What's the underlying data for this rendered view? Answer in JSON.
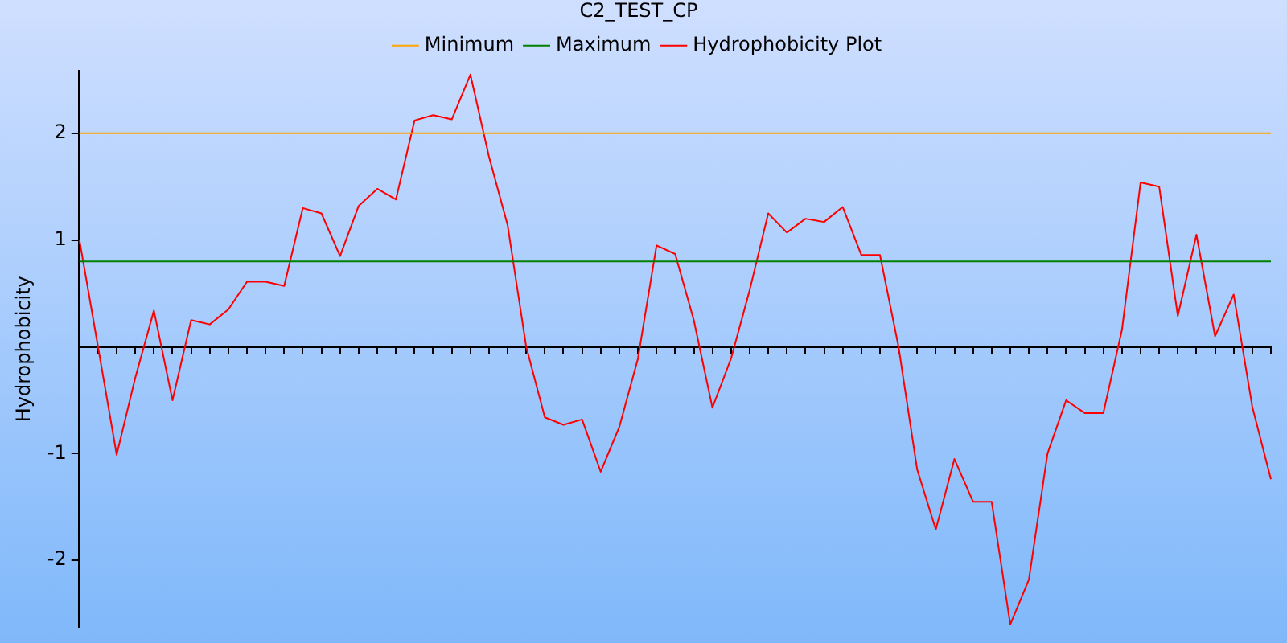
{
  "chart_data": {
    "type": "line",
    "title": "C2_TEST_CP",
    "ylabel": "Hydrophobicity",
    "categories": [
      null,
      null,
      null,
      null,
      null,
      null,
      null,
      null,
      null,
      null,
      null,
      null,
      null,
      null,
      null,
      null,
      null,
      null,
      null,
      null,
      null,
      null,
      null,
      null,
      null,
      null,
      null,
      null,
      null,
      null,
      null,
      null,
      null,
      null,
      null,
      null,
      null,
      null,
      null,
      null,
      null,
      null,
      null,
      null,
      null,
      null,
      null,
      null,
      null,
      null,
      null,
      null,
      null,
      null,
      null,
      null,
      null,
      null,
      null,
      null,
      null,
      null,
      null,
      null,
      null
    ],
    "series": [
      {
        "name": "Minimum",
        "color": "#ffa500",
        "values": [
          2,
          2,
          2,
          2,
          2,
          2,
          2,
          2,
          2,
          2,
          2,
          2,
          2,
          2,
          2,
          2,
          2,
          2,
          2,
          2,
          2,
          2,
          2,
          2,
          2,
          2,
          2,
          2,
          2,
          2,
          2,
          2,
          2,
          2,
          2,
          2,
          2,
          2,
          2,
          2,
          2,
          2,
          2,
          2,
          2,
          2,
          2,
          2,
          2,
          2,
          2,
          2,
          2,
          2,
          2,
          2,
          2,
          2,
          2,
          2,
          2,
          2,
          2,
          2,
          2
        ]
      },
      {
        "name": "Maximum",
        "color": "#008000",
        "values": [
          0.8,
          0.8,
          0.8,
          0.8,
          0.8,
          0.8,
          0.8,
          0.8,
          0.8,
          0.8,
          0.8,
          0.8,
          0.8,
          0.8,
          0.8,
          0.8,
          0.8,
          0.8,
          0.8,
          0.8,
          0.8,
          0.8,
          0.8,
          0.8,
          0.8,
          0.8,
          0.8,
          0.8,
          0.8,
          0.8,
          0.8,
          0.8,
          0.8,
          0.8,
          0.8,
          0.8,
          0.8,
          0.8,
          0.8,
          0.8,
          0.8,
          0.8,
          0.8,
          0.8,
          0.8,
          0.8,
          0.8,
          0.8,
          0.8,
          0.8,
          0.8,
          0.8,
          0.8,
          0.8,
          0.8,
          0.8,
          0.8,
          0.8,
          0.8,
          0.8,
          0.8,
          0.8,
          0.8,
          0.8,
          0.8
        ]
      },
      {
        "name": "Hydrophobicity Plot",
        "color": "#ff0000",
        "values": [
          1.0,
          0.0,
          -1.01,
          -0.29,
          0.34,
          -0.5,
          0.25,
          0.21,
          0.35,
          0.61,
          0.61,
          0.57,
          1.3,
          1.25,
          0.85,
          1.32,
          1.48,
          1.38,
          2.12,
          2.17,
          2.13,
          2.55,
          1.78,
          1.14,
          0.0,
          -0.66,
          -0.73,
          -0.68,
          -1.17,
          -0.75,
          -0.11,
          0.95,
          0.87,
          0.25,
          -0.57,
          -0.11,
          0.53,
          1.25,
          1.07,
          1.2,
          1.17,
          1.31,
          0.86,
          0.86,
          0.0,
          -1.15,
          -1.71,
          -1.05,
          -1.45,
          -1.45,
          -2.6,
          -2.18,
          -1.0,
          -0.5,
          -0.62,
          -0.62,
          0.16,
          1.54,
          1.5,
          0.29,
          1.05,
          0.1,
          0.49,
          -0.56,
          -1.24
        ]
      }
    ],
    "ylim": [
      -2.62,
      2.58
    ],
    "yticks": [
      -2,
      -1,
      1,
      2
    ],
    "tick_labels": "y",
    "grid": false,
    "legend": "top",
    "marker": "none",
    "line_style": "solid"
  }
}
